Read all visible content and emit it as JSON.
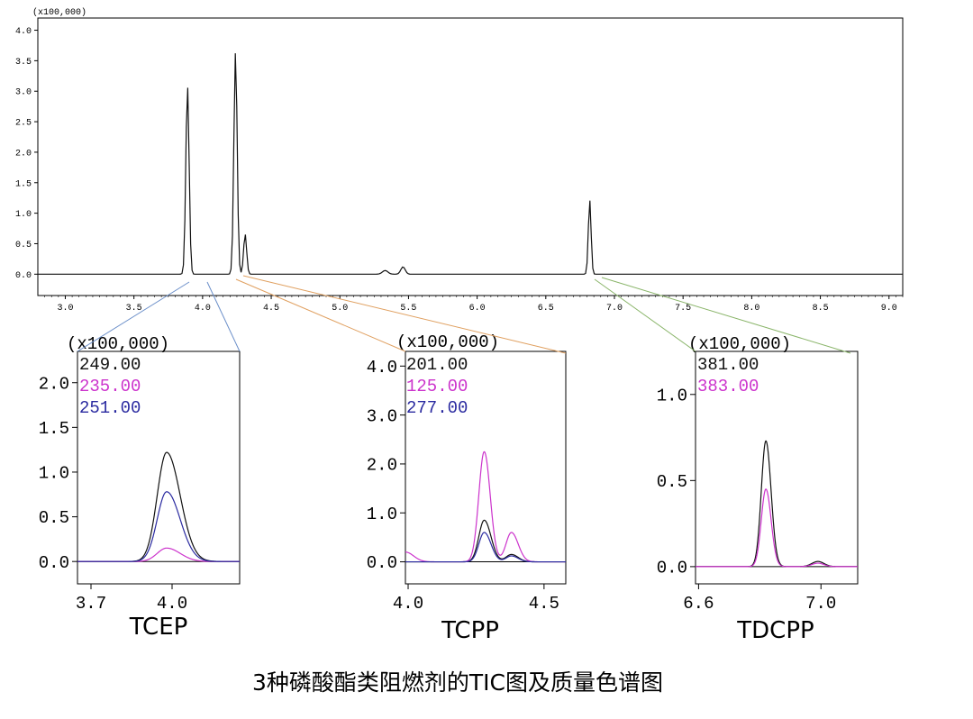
{
  "figure_caption": "3种磷酸酯类阻燃剂的TIC图及质量色谱图",
  "colors": {
    "black": "#111111",
    "magenta": "#cc33cc",
    "blue": "#2a2aa0",
    "connector_blue": "#6b8fc9",
    "connector_orange": "#e0a060",
    "connector_green": "#8ab56a"
  },
  "chart_data": [
    {
      "id": "tic",
      "type": "line",
      "scale_label": "(x100,000)",
      "xlim": [
        2.8,
        9.1
      ],
      "ylim": [
        -0.35,
        4.2
      ],
      "x_ticks": [
        3.0,
        3.5,
        4.0,
        4.5,
        5.0,
        5.5,
        6.0,
        6.5,
        7.0,
        7.5,
        8.0,
        8.5,
        9.0
      ],
      "x_tick_labels": [
        "3.0",
        "3.5",
        "4.0",
        "4.5",
        "5.0",
        "5.5",
        "6.0",
        "6.5",
        "7.0",
        "7.5",
        "8.0",
        "8.5",
        "9.0"
      ],
      "y_ticks": [
        0.0,
        0.5,
        1.0,
        1.5,
        2.0,
        2.5,
        3.0,
        3.5,
        4.0
      ],
      "y_tick_labels": [
        "0.0",
        "0.5",
        "1.0",
        "1.5",
        "2.0",
        "2.5",
        "3.0",
        "3.5",
        "4.0"
      ],
      "baseline": 0.0,
      "peaks": [
        {
          "x": 3.89,
          "height": 3.1,
          "width": 0.012
        },
        {
          "x": 4.24,
          "height": 3.65,
          "width": 0.012
        },
        {
          "x": 4.31,
          "height": 0.66,
          "width": 0.011
        },
        {
          "x": 5.33,
          "height": 0.06,
          "width": 0.02
        },
        {
          "x": 5.46,
          "height": 0.12,
          "width": 0.016
        },
        {
          "x": 6.82,
          "height": 1.22,
          "width": 0.01
        }
      ]
    },
    {
      "id": "tcep",
      "type": "line",
      "name": "TCEP",
      "scale_label": "(x100,000)",
      "xlim": [
        3.65,
        4.25
      ],
      "ylim": [
        -0.25,
        2.35
      ],
      "x_ticks": [
        3.7,
        4.0
      ],
      "x_tick_labels": [
        "3.7",
        "4.0"
      ],
      "y_ticks": [
        0.0,
        0.5,
        1.0,
        1.5,
        2.0
      ],
      "y_tick_labels": [
        "0.0",
        "0.5",
        "1.0",
        "1.5",
        "2.0"
      ],
      "series": [
        {
          "name": "249.00",
          "color": "#111111",
          "peaks": [
            {
              "x": 3.98,
              "height": 1.22,
              "sl": 0.035,
              "sr": 0.05
            }
          ]
        },
        {
          "name": "235.00",
          "color": "#cc33cc",
          "peaks": [
            {
              "x": 3.98,
              "height": 0.15,
              "sl": 0.035,
              "sr": 0.05
            }
          ]
        },
        {
          "name": "251.00",
          "color": "#2a2aa0",
          "peaks": [
            {
              "x": 3.98,
              "height": 0.78,
              "sl": 0.035,
              "sr": 0.05
            }
          ]
        }
      ]
    },
    {
      "id": "tcpp",
      "type": "line",
      "name": "TCPP",
      "scale_label": "(x100,000)",
      "xlim": [
        3.99,
        4.58
      ],
      "ylim": [
        -0.45,
        4.3
      ],
      "x_ticks": [
        4.0,
        4.5
      ],
      "x_tick_labels": [
        "4.0",
        "4.5"
      ],
      "y_ticks": [
        0.0,
        1.0,
        2.0,
        3.0,
        4.0
      ],
      "y_tick_labels": [
        "0.0",
        "1.0",
        "2.0",
        "3.0",
        "4.0"
      ],
      "series": [
        {
          "name": "201.00",
          "color": "#111111",
          "peaks": [
            {
              "x": 4.28,
              "height": 0.85,
              "sl": 0.02,
              "sr": 0.025
            },
            {
              "x": 4.38,
              "height": 0.15,
              "sl": 0.02,
              "sr": 0.025
            }
          ]
        },
        {
          "name": "125.00",
          "color": "#cc33cc",
          "peaks": [
            {
              "x": 4.28,
              "height": 2.25,
              "sl": 0.02,
              "sr": 0.022
            },
            {
              "x": 4.38,
              "height": 0.6,
              "sl": 0.02,
              "sr": 0.025
            },
            {
              "x": 3.99,
              "height": 0.2,
              "sl": 0.02,
              "sr": 0.03
            }
          ]
        },
        {
          "name": "277.00",
          "color": "#2a2aa0",
          "peaks": [
            {
              "x": 4.28,
              "height": 0.6,
              "sl": 0.02,
              "sr": 0.025
            },
            {
              "x": 4.38,
              "height": 0.12,
              "sl": 0.02,
              "sr": 0.025
            }
          ]
        }
      ]
    },
    {
      "id": "tdcpp",
      "type": "line",
      "name": "TDCPP",
      "scale_label": "(x100,000)",
      "xlim": [
        6.59,
        7.12
      ],
      "ylim": [
        -0.1,
        1.25
      ],
      "x_ticks": [
        6.6,
        7.0
      ],
      "x_tick_labels": [
        "6.6",
        "7.0"
      ],
      "y_ticks": [
        0.0,
        0.5,
        1.0
      ],
      "y_tick_labels": [
        "0.0",
        "0.5",
        "1.0"
      ],
      "series": [
        {
          "name": "381.00",
          "color": "#111111",
          "peaks": [
            {
              "x": 6.82,
              "height": 0.73,
              "sl": 0.015,
              "sr": 0.017
            },
            {
              "x": 6.99,
              "height": 0.03,
              "sl": 0.02,
              "sr": 0.02
            }
          ]
        },
        {
          "name": "383.00",
          "color": "#cc33cc",
          "peaks": [
            {
              "x": 6.82,
              "height": 0.45,
              "sl": 0.015,
              "sr": 0.017
            },
            {
              "x": 6.99,
              "height": 0.02,
              "sl": 0.02,
              "sr": 0.02
            }
          ]
        }
      ]
    }
  ]
}
